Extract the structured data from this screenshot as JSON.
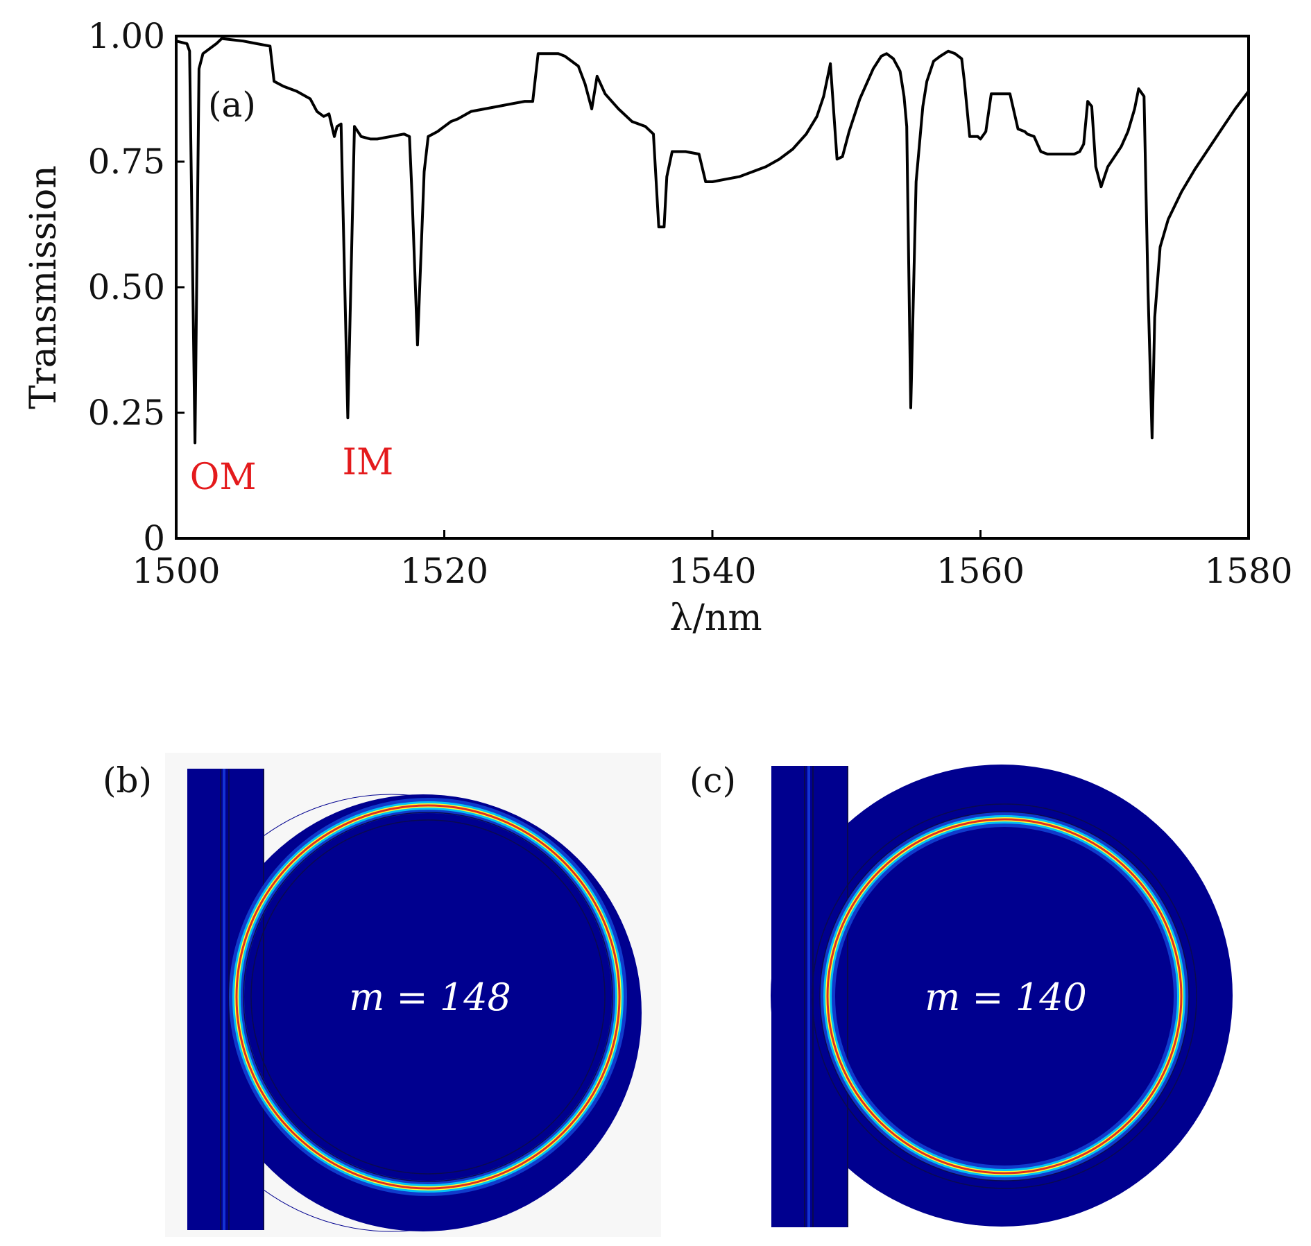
{
  "chart_data": {
    "type": "line",
    "panel_label": "(a)",
    "xlabel": "λ/nm",
    "ylabel": "Transmission",
    "xlim": [
      1500,
      1580
    ],
    "ylim": [
      0,
      1.0
    ],
    "xticks": [
      1500,
      1520,
      1540,
      1560,
      1580
    ],
    "xtick_labels": [
      "1500",
      "1520",
      "1540",
      "1560",
      "1580"
    ],
    "yticks": [
      0,
      0.25,
      0.5,
      0.75,
      1.0
    ],
    "ytick_labels": [
      "0",
      "0.25",
      "0.50",
      "0.75",
      "1.00"
    ],
    "grid": false,
    "annotations": [
      {
        "text": "OM",
        "x": 1503.5,
        "y": 0.12,
        "color": "#e41a1c"
      },
      {
        "text": "IM",
        "x": 1514.3,
        "y": 0.15,
        "color": "#e41a1c"
      }
    ],
    "series": [
      {
        "color": "#000000",
        "x": [
          1500.0,
          1500.8,
          1501.0,
          1501.4,
          1501.7,
          1502.0,
          1503.0,
          1503.4,
          1505.0,
          1506.0,
          1507.0,
          1507.3,
          1508.0,
          1509.0,
          1510.0,
          1510.5,
          1511.0,
          1511.4,
          1511.8,
          1512.0,
          1512.3,
          1512.8,
          1513.3,
          1513.8,
          1514.5,
          1515.0,
          1516.0,
          1517.0,
          1517.4,
          1517.6,
          1518.0,
          1518.5,
          1518.8,
          1519.5,
          1520.0,
          1520.5,
          1521.0,
          1522.0,
          1523.0,
          1524.0,
          1525.0,
          1526.0,
          1526.6,
          1527.0,
          1527.5,
          1528.5,
          1529.0,
          1530.0,
          1530.5,
          1531.0,
          1531.4,
          1532.0,
          1533.0,
          1534.0,
          1535.0,
          1535.6,
          1536.0,
          1536.4,
          1536.6,
          1537.0,
          1538.0,
          1539.0,
          1539.5,
          1540.0,
          1541.0,
          1542.0,
          1543.0,
          1544.0,
          1545.0,
          1546.0,
          1547.0,
          1547.8,
          1548.3,
          1548.8,
          1549.3,
          1549.7,
          1550.2,
          1551.0,
          1552.0,
          1552.6,
          1553.0,
          1553.5,
          1554.0,
          1554.3,
          1554.5,
          1554.8,
          1555.2,
          1555.7,
          1556.0,
          1556.5,
          1557.0,
          1557.6,
          1558.1,
          1558.6,
          1558.8,
          1559.2,
          1559.8,
          1560.0,
          1560.4,
          1560.8,
          1561.2,
          1561.8,
          1562.2,
          1562.8,
          1563.3,
          1563.5,
          1564.0,
          1564.5,
          1565.0,
          1566.0,
          1566.5,
          1567.0,
          1567.4,
          1567.7,
          1568.0,
          1568.3,
          1568.6,
          1569.0,
          1569.5,
          1570.0,
          1570.5,
          1571.0,
          1571.5,
          1571.8,
          1572.2,
          1572.5,
          1572.8,
          1573.0,
          1573.4,
          1574.0,
          1575.0,
          1576.0,
          1577.0,
          1578.0,
          1579.0,
          1580.0
        ],
        "values": [
          0.99,
          0.985,
          0.97,
          0.19,
          0.935,
          0.965,
          0.985,
          0.995,
          0.99,
          0.985,
          0.98,
          0.91,
          0.9,
          0.89,
          0.875,
          0.85,
          0.84,
          0.845,
          0.8,
          0.82,
          0.825,
          0.24,
          0.82,
          0.8,
          0.795,
          0.795,
          0.8,
          0.805,
          0.8,
          0.68,
          0.385,
          0.73,
          0.8,
          0.81,
          0.82,
          0.83,
          0.835,
          0.85,
          0.855,
          0.86,
          0.865,
          0.87,
          0.87,
          0.965,
          0.965,
          0.965,
          0.96,
          0.94,
          0.905,
          0.855,
          0.92,
          0.885,
          0.855,
          0.83,
          0.82,
          0.805,
          0.62,
          0.62,
          0.72,
          0.77,
          0.77,
          0.765,
          0.71,
          0.71,
          0.715,
          0.72,
          0.73,
          0.74,
          0.755,
          0.775,
          0.805,
          0.84,
          0.88,
          0.945,
          0.755,
          0.76,
          0.81,
          0.875,
          0.935,
          0.96,
          0.965,
          0.955,
          0.93,
          0.88,
          0.82,
          0.26,
          0.71,
          0.86,
          0.91,
          0.95,
          0.96,
          0.97,
          0.965,
          0.955,
          0.91,
          0.8,
          0.8,
          0.795,
          0.81,
          0.885,
          0.885,
          0.885,
          0.885,
          0.815,
          0.81,
          0.805,
          0.8,
          0.77,
          0.765,
          0.765,
          0.765,
          0.765,
          0.77,
          0.785,
          0.87,
          0.86,
          0.74,
          0.7,
          0.74,
          0.76,
          0.78,
          0.81,
          0.855,
          0.895,
          0.88,
          0.49,
          0.2,
          0.44,
          0.58,
          0.635,
          0.69,
          0.735,
          0.775,
          0.815,
          0.855,
          0.89
        ]
      }
    ]
  },
  "panels": {
    "b": {
      "label": "(b)",
      "mode_text": "m = 148"
    },
    "c": {
      "label": "(c)",
      "mode_text": "m = 140"
    }
  }
}
